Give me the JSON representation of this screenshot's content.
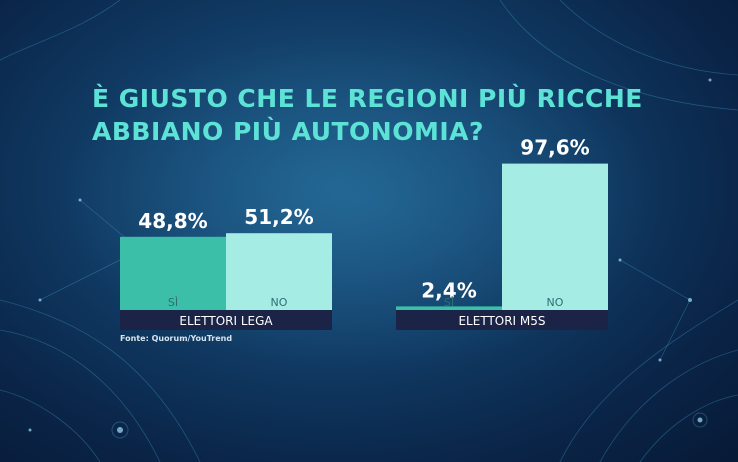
{
  "title_lines": [
    "È GIUSTO CHE LE REGIONI PIÙ RICCHE",
    "ABBIANO PIÙ AUTONOMIA?"
  ],
  "source": "Fonte: Quorum/YouTrend",
  "colors": {
    "yes": "#3bbfa8",
    "no": "#a4ece4",
    "group_bar": "#1b2447",
    "title": "#5de3d6"
  },
  "chart_data": [
    {
      "type": "bar",
      "group_label": "ELETTORI LEGA",
      "categories": [
        "SÌ",
        "NO"
      ],
      "values": [
        48.8,
        51.2
      ],
      "value_labels": [
        "48,8%",
        "51,2%"
      ],
      "ylim": [
        0,
        100
      ]
    },
    {
      "type": "bar",
      "group_label": "ELETTORI M5S",
      "categories": [
        "SÌ",
        "NO"
      ],
      "values": [
        2.4,
        97.6
      ],
      "value_labels": [
        "2,4%",
        "97,6%"
      ],
      "ylim": [
        0,
        100
      ]
    }
  ]
}
